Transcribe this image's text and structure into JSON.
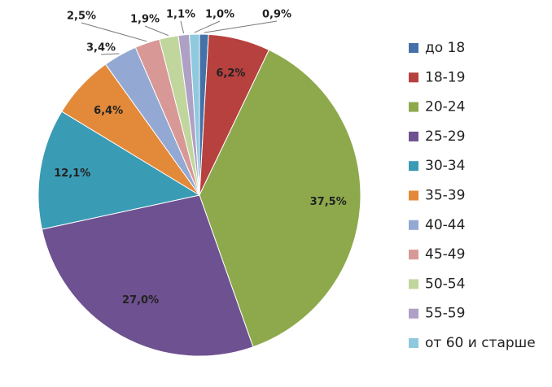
{
  "chart_data": {
    "type": "pie",
    "categories": [
      "до 18",
      "18-19",
      "20-24",
      "25-29",
      "30-34",
      "35-39",
      "40-44",
      "45-49",
      "50-54",
      "55-59",
      "от 60 и старше"
    ],
    "values": [
      0.9,
      6.2,
      37.5,
      27.0,
      12.1,
      6.4,
      3.4,
      2.5,
      1.9,
      1.1,
      1.0
    ],
    "data_labels": [
      "0,9%",
      "6,2%",
      "37,5%",
      "27,0%",
      "12,1%",
      "6,4%",
      "3,4%",
      "2,5%",
      "1,9%",
      "1,1%",
      "1,0%"
    ],
    "colors": [
      "#4472A8",
      "#B6413E",
      "#8DA94C",
      "#6E5190",
      "#3A9BB5",
      "#E38A3A",
      "#93A9D4",
      "#D89896",
      "#C1D69D",
      "#AFA0C6",
      "#8FC9DE"
    ],
    "legend_position": "right",
    "start_angle_deg": 0,
    "direction": "clockwise"
  }
}
